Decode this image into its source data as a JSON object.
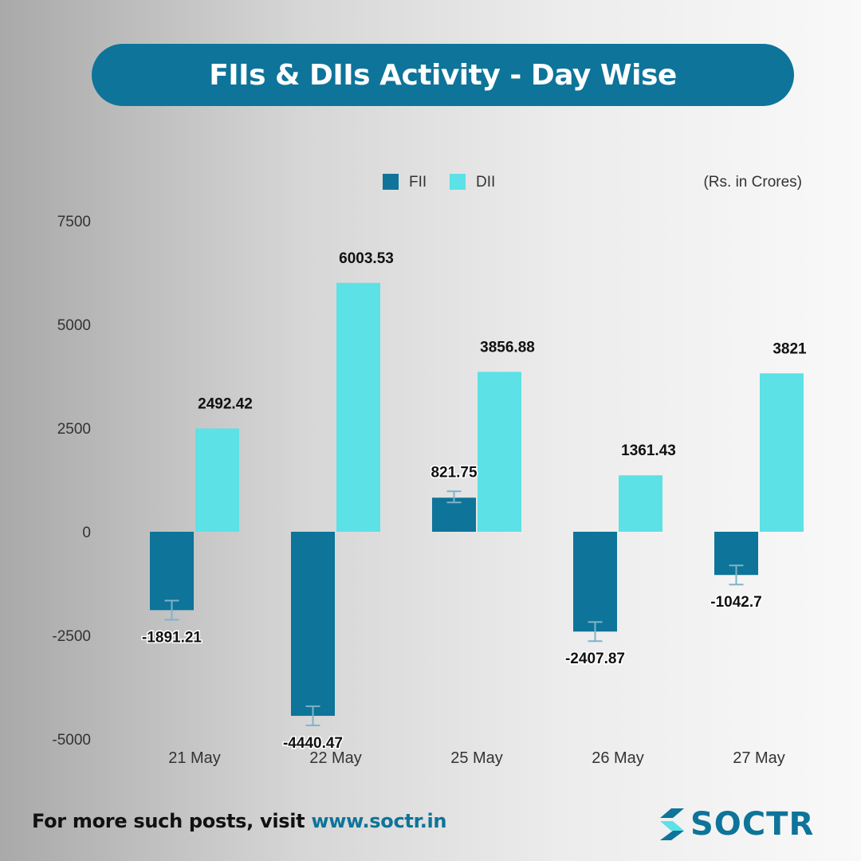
{
  "header": {
    "title": "FIIs & DIIs Activity - Day Wise"
  },
  "colors": {
    "fii": "#0e7499",
    "dii": "#5ce1e6",
    "accent": "#0e7499"
  },
  "chart_data": {
    "type": "bar",
    "title": "FIIs & DIIs Activity - Day Wise",
    "unit_note": "(Rs. in Crores)",
    "categories": [
      "21 May",
      "22 May",
      "25 May",
      "26 May",
      "27 May"
    ],
    "series": [
      {
        "name": "FII",
        "values": [
          -1891.21,
          -4440.47,
          821.75,
          -2407.87,
          -1042.7
        ],
        "labels": [
          "-1891.21",
          "-4440.47",
          "821.75",
          "-2407.87",
          "-1042.7"
        ]
      },
      {
        "name": "DII",
        "values": [
          2492.42,
          6003.53,
          3856.88,
          1361.43,
          3821
        ],
        "labels": [
          "2492.42",
          "6003.53",
          "3856.88",
          "1361.43",
          "3821"
        ]
      }
    ],
    "yticks": [
      "7500",
      "5000",
      "2500",
      "0",
      "-2500",
      "-5000"
    ],
    "ylim": [
      -5000,
      7500
    ],
    "legend_position": "top",
    "grid": false
  },
  "footer": {
    "text": "For more such posts, visit ",
    "link": "www.soctr.in"
  },
  "logo": {
    "text": "SOCTR"
  }
}
